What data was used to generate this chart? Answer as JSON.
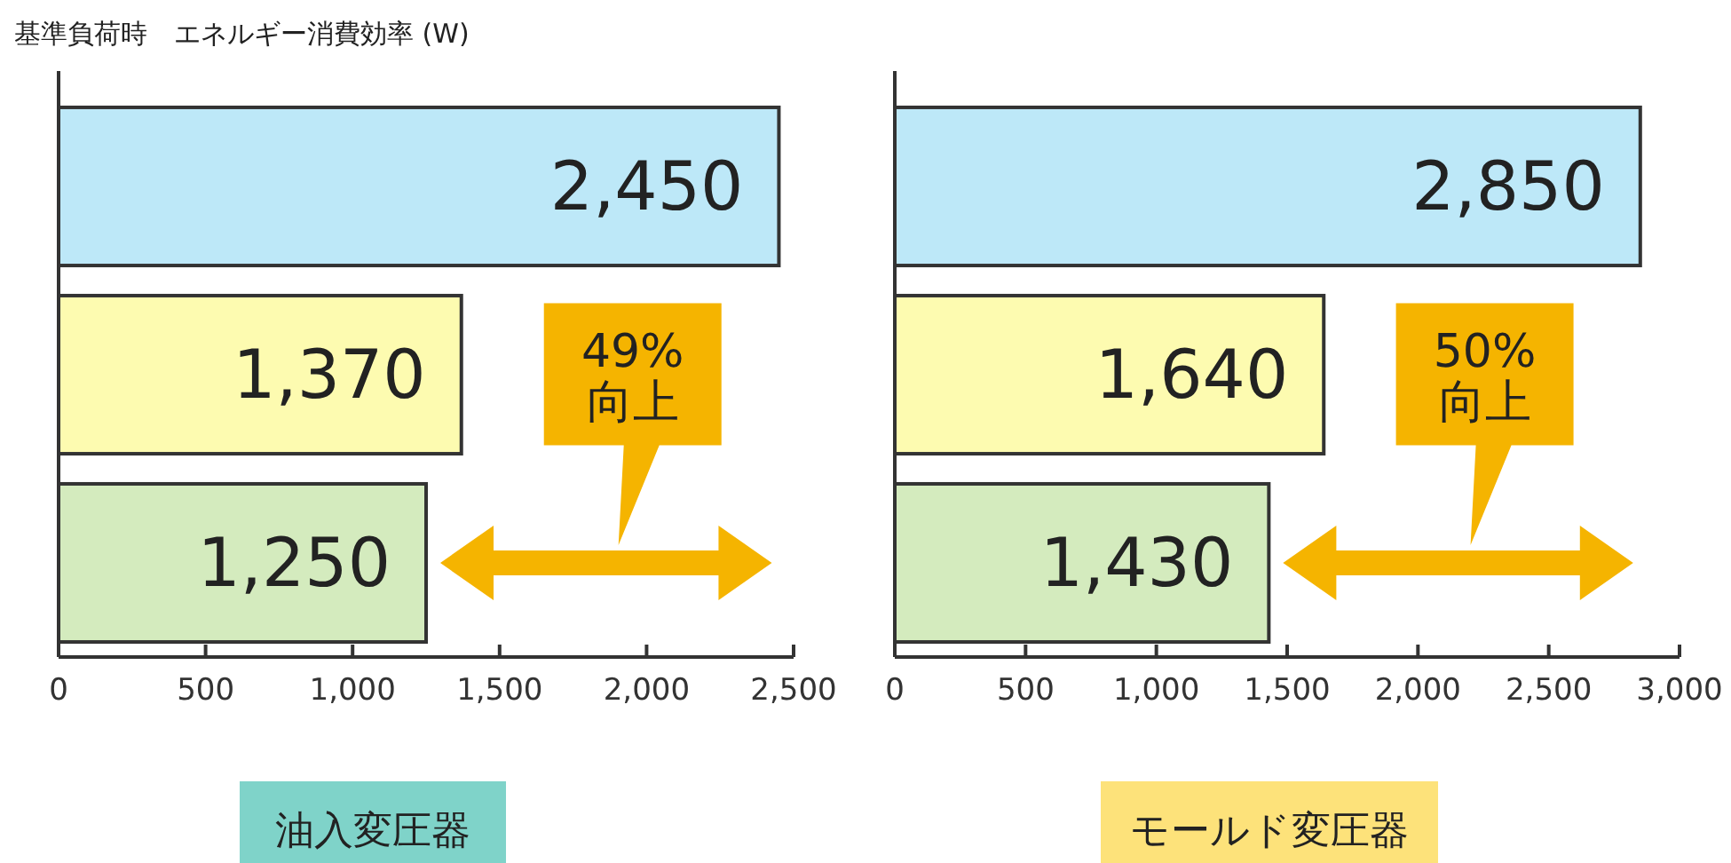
{
  "chart_data": [
    {
      "type": "bar",
      "orientation": "horizontal",
      "title": "基準負荷時　エネルギー消費効率 (W)",
      "xlabel": "油入変圧器",
      "categories": [
        null,
        null,
        null
      ],
      "values": [
        2450,
        1370,
        1250
      ],
      "colors": [
        "#bde8f8",
        "#fdfbb0",
        "#d4ebbe"
      ],
      "value_labels": [
        "2,450",
        "1,370",
        "1,250"
      ],
      "xlim": [
        0,
        2500
      ],
      "xticks": [
        {
          "value": 0,
          "label": "0"
        },
        {
          "value": 500,
          "label": "500"
        },
        {
          "value": 1000,
          "label": "1,000"
        },
        {
          "value": 1500,
          "label": "1,500"
        },
        {
          "value": 2000,
          "label": "2,000"
        },
        {
          "value": 2500,
          "label": "2,500"
        }
      ],
      "annotations": [
        "49%\n向上"
      ],
      "grid": false
    },
    {
      "type": "bar",
      "orientation": "horizontal",
      "xlabel": "モールド変圧器",
      "categories": [
        null,
        null,
        null
      ],
      "values": [
        2850,
        1640,
        1430
      ],
      "colors": [
        "#bde8f8",
        "#fdfbb0",
        "#d4ebbe"
      ],
      "value_labels": [
        "2,850",
        "1,640",
        "1,430"
      ],
      "xlim": [
        0,
        3000
      ],
      "xticks": [
        {
          "value": 0,
          "label": "0"
        },
        {
          "value": 500,
          "label": "500"
        },
        {
          "value": 1000,
          "label": "1,000"
        },
        {
          "value": 1500,
          "label": "1,500"
        },
        {
          "value": 2000,
          "label": "2,000"
        },
        {
          "value": 2500,
          "label": "2,500"
        },
        {
          "value": 3000,
          "label": "3,000"
        }
      ],
      "annotations": [
        "50%\n向上"
      ],
      "grid": false
    }
  ]
}
